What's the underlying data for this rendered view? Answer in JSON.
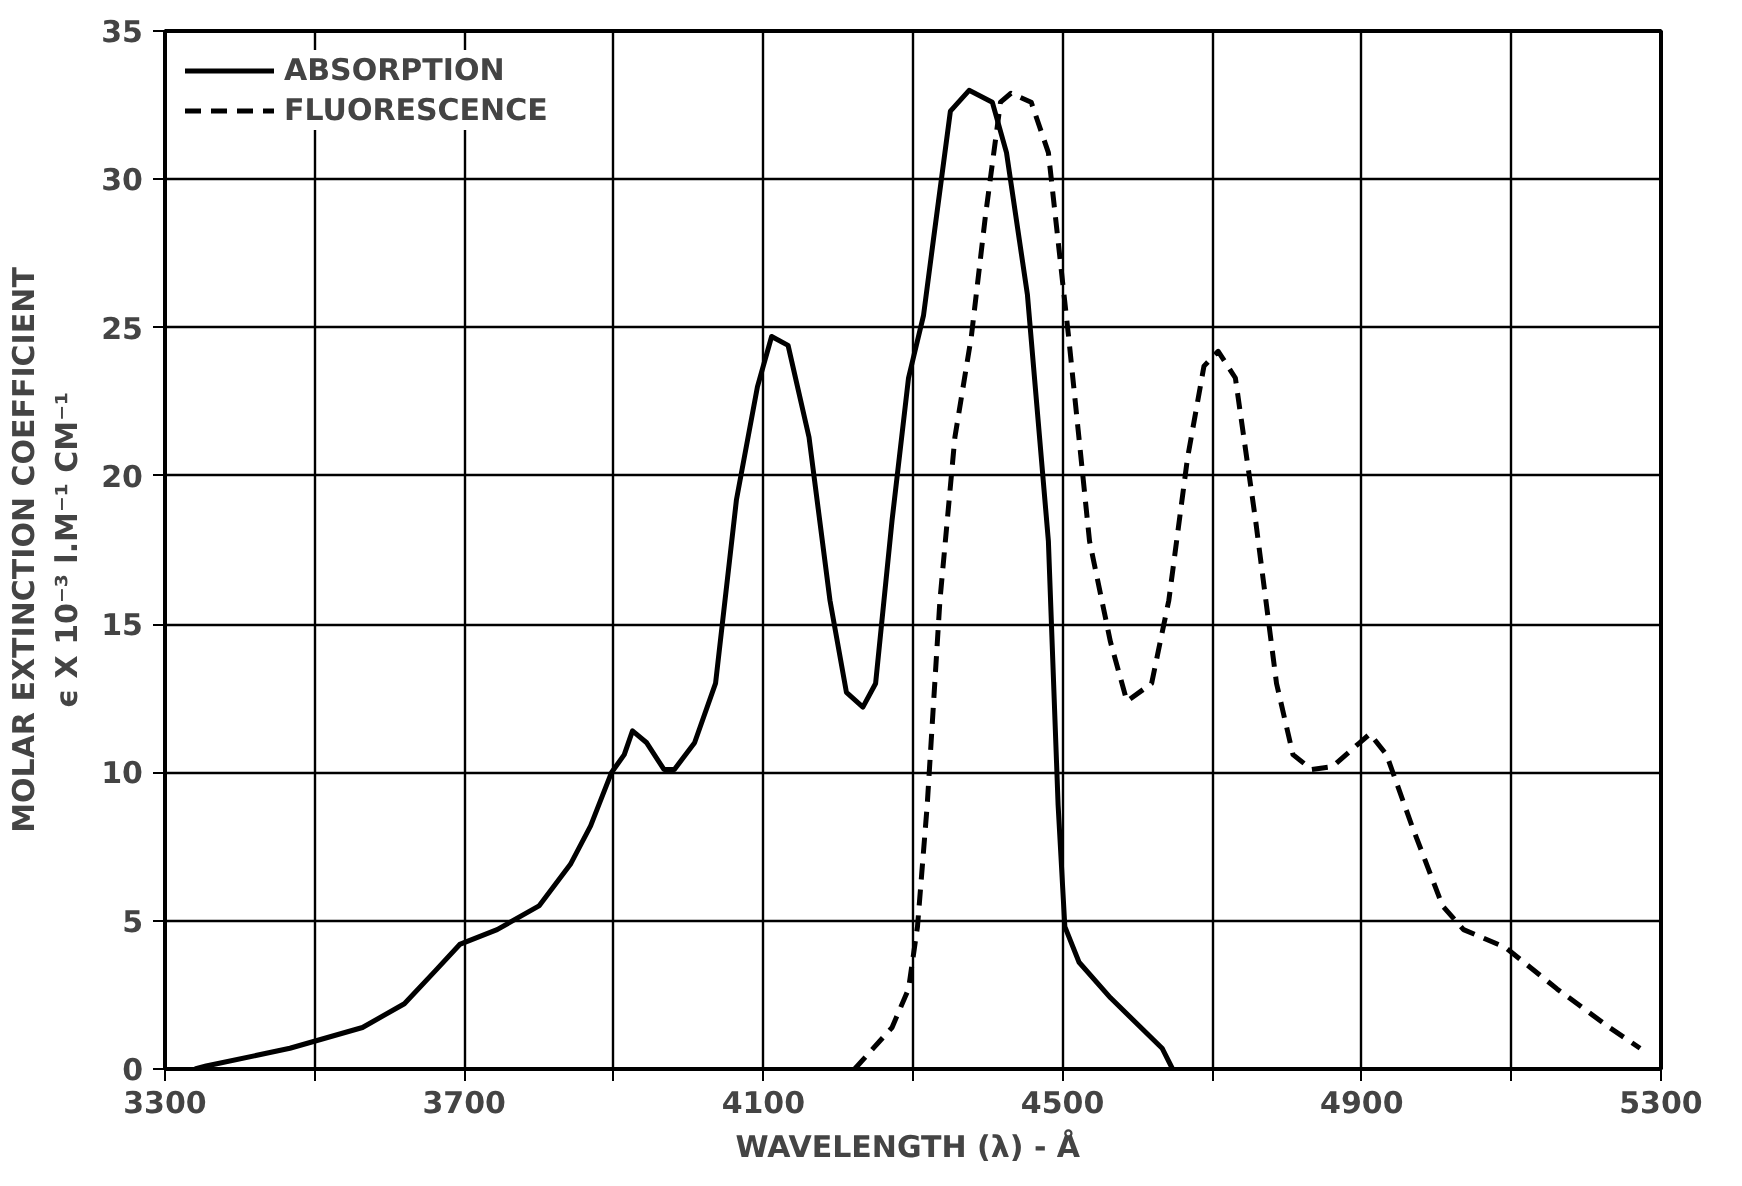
{
  "chart_data": {
    "type": "line",
    "xlabel": "WAVELENGTH  (λ) - Å",
    "ylabel": "MOLAR EXTINCTION COEFFICIENT\nϵ X 10⁻³ l.M⁻¹ CM⁻¹",
    "xlim": [
      3300,
      5300
    ],
    "xticks": [
      3300,
      {
        "value": 3500,
        "label": null
      },
      3700,
      {
        "value": 3900,
        "label": null
      },
      4100,
      {
        "value": 4300,
        "label": null
      },
      4500,
      {
        "value": 4700,
        "label": null
      },
      4900,
      {
        "value": 5100,
        "label": null
      },
      5300
    ],
    "ylim": [
      0,
      35
    ],
    "yticks": [
      0,
      5,
      10,
      15,
      20,
      25,
      30,
      35
    ],
    "grid": true,
    "legend": "top left",
    "marker": "none",
    "series": [
      {
        "name": "ABSORPTION",
        "color": "#000000",
        "line_style": "solid",
        "x": [
          3340,
          3355,
          3467,
          3564,
          3620,
          3661,
          3694,
          3744,
          3800,
          3842,
          3869,
          3897,
          3914,
          3925,
          3944,
          3967,
          3981,
          4008,
          4036,
          4064,
          4092,
          4111,
          4133,
          4161,
          4189,
          4211,
          4233,
          4250,
          4272,
          4294,
          4314,
          4328,
          4350,
          4375,
          4406,
          4425,
          4453,
          4481,
          4494,
          4503,
          4522,
          4564,
          4633,
          4647
        ],
        "values": [
          0,
          0.1,
          0.7,
          1.4,
          2.2,
          3.3,
          4.2,
          4.7,
          5.5,
          6.9,
          8.2,
          10.0,
          10.6,
          11.4,
          11.0,
          10.1,
          10.1,
          11.0,
          13.0,
          19.2,
          23.0,
          24.7,
          24.4,
          21.3,
          15.8,
          12.7,
          12.2,
          13.0,
          18.5,
          23.3,
          25.4,
          28.1,
          32.3,
          33.0,
          32.6,
          30.9,
          26.1,
          17.8,
          8.9,
          4.8,
          3.6,
          2.4,
          0.7,
          0
        ]
      },
      {
        "name": "FLUORESCENCE",
        "color": "#000000",
        "line_style": "dashed",
        "x": [
          4222,
          4272,
          4294,
          4306,
          4319,
          4336,
          4356,
          4378,
          4397,
          4417,
          4431,
          4458,
          4481,
          4508,
          4536,
          4564,
          4586,
          4619,
          4642,
          4667,
          4689,
          4708,
          4731,
          4758,
          4786,
          4808,
          4833,
          4861,
          4897,
          4911,
          4933,
          4967,
          5008,
          5036,
          5092,
          5161,
          5231,
          5272
        ],
        "values": [
          0,
          1.4,
          2.7,
          4.8,
          8.9,
          15.8,
          21.3,
          24.7,
          28.8,
          32.6,
          32.9,
          32.6,
          30.9,
          24.7,
          17.8,
          14.4,
          12.4,
          13.0,
          15.8,
          20.6,
          23.7,
          24.2,
          23.3,
          18.5,
          13.0,
          10.6,
          10.1,
          10.2,
          11.0,
          11.3,
          10.6,
          8.2,
          5.5,
          4.7,
          4.1,
          2.7,
          1.4,
          0.7
        ]
      }
    ]
  }
}
